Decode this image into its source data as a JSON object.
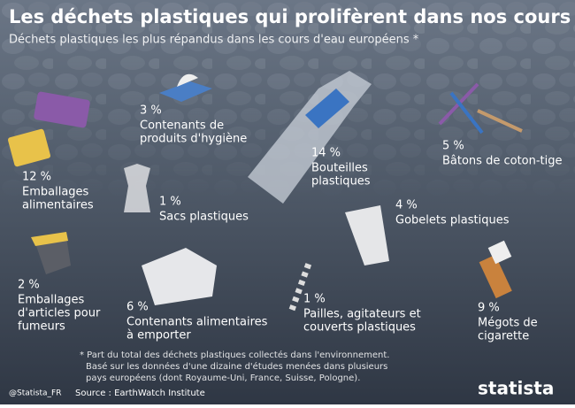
{
  "header": {
    "title": "Les déchets plastiques qui prolifèrent dans nos cours d'eau",
    "subtitle": "Déchets plastiques les plus répandus dans les cours d'eau européens *"
  },
  "items": [
    {
      "percent": "12 %",
      "label": [
        "Emballages",
        "alimentaires"
      ]
    },
    {
      "percent": "3 %",
      "label": [
        "Contenants de",
        "produits d'hygiène"
      ]
    },
    {
      "percent": "14 %",
      "label": [
        "Bouteilles",
        "plastiques"
      ]
    },
    {
      "percent": "5 %",
      "label": [
        "Bâtons de coton-tige"
      ]
    },
    {
      "percent": "1 %",
      "label": [
        "Sacs plastiques"
      ]
    },
    {
      "percent": "4 %",
      "label": [
        "Gobelets plastiques"
      ]
    },
    {
      "percent": "2 %",
      "label": [
        "Emballages",
        "d'articles pour",
        "fumeurs"
      ]
    },
    {
      "percent": "6 %",
      "label": [
        "Contenants alimentaires",
        "à emporter"
      ]
    },
    {
      "percent": "1 %",
      "label": [
        "Pailles, agitateurs et",
        "couverts plastiques"
      ]
    },
    {
      "percent": "9 %",
      "label": [
        "Mégots de",
        "cigarette"
      ]
    }
  ],
  "footer": {
    "note": [
      "* Part du total des déchets plastiques collectés dans l'environnement.",
      "Basé sur les données d'une dizaine d'études menées dans plusieurs",
      "pays européens (dont Royaume-Uni, France, Suisse, Pologne)."
    ],
    "source": "Source : EarthWatch Institute",
    "handle": "@Statista_FR",
    "logo": "statista"
  }
}
